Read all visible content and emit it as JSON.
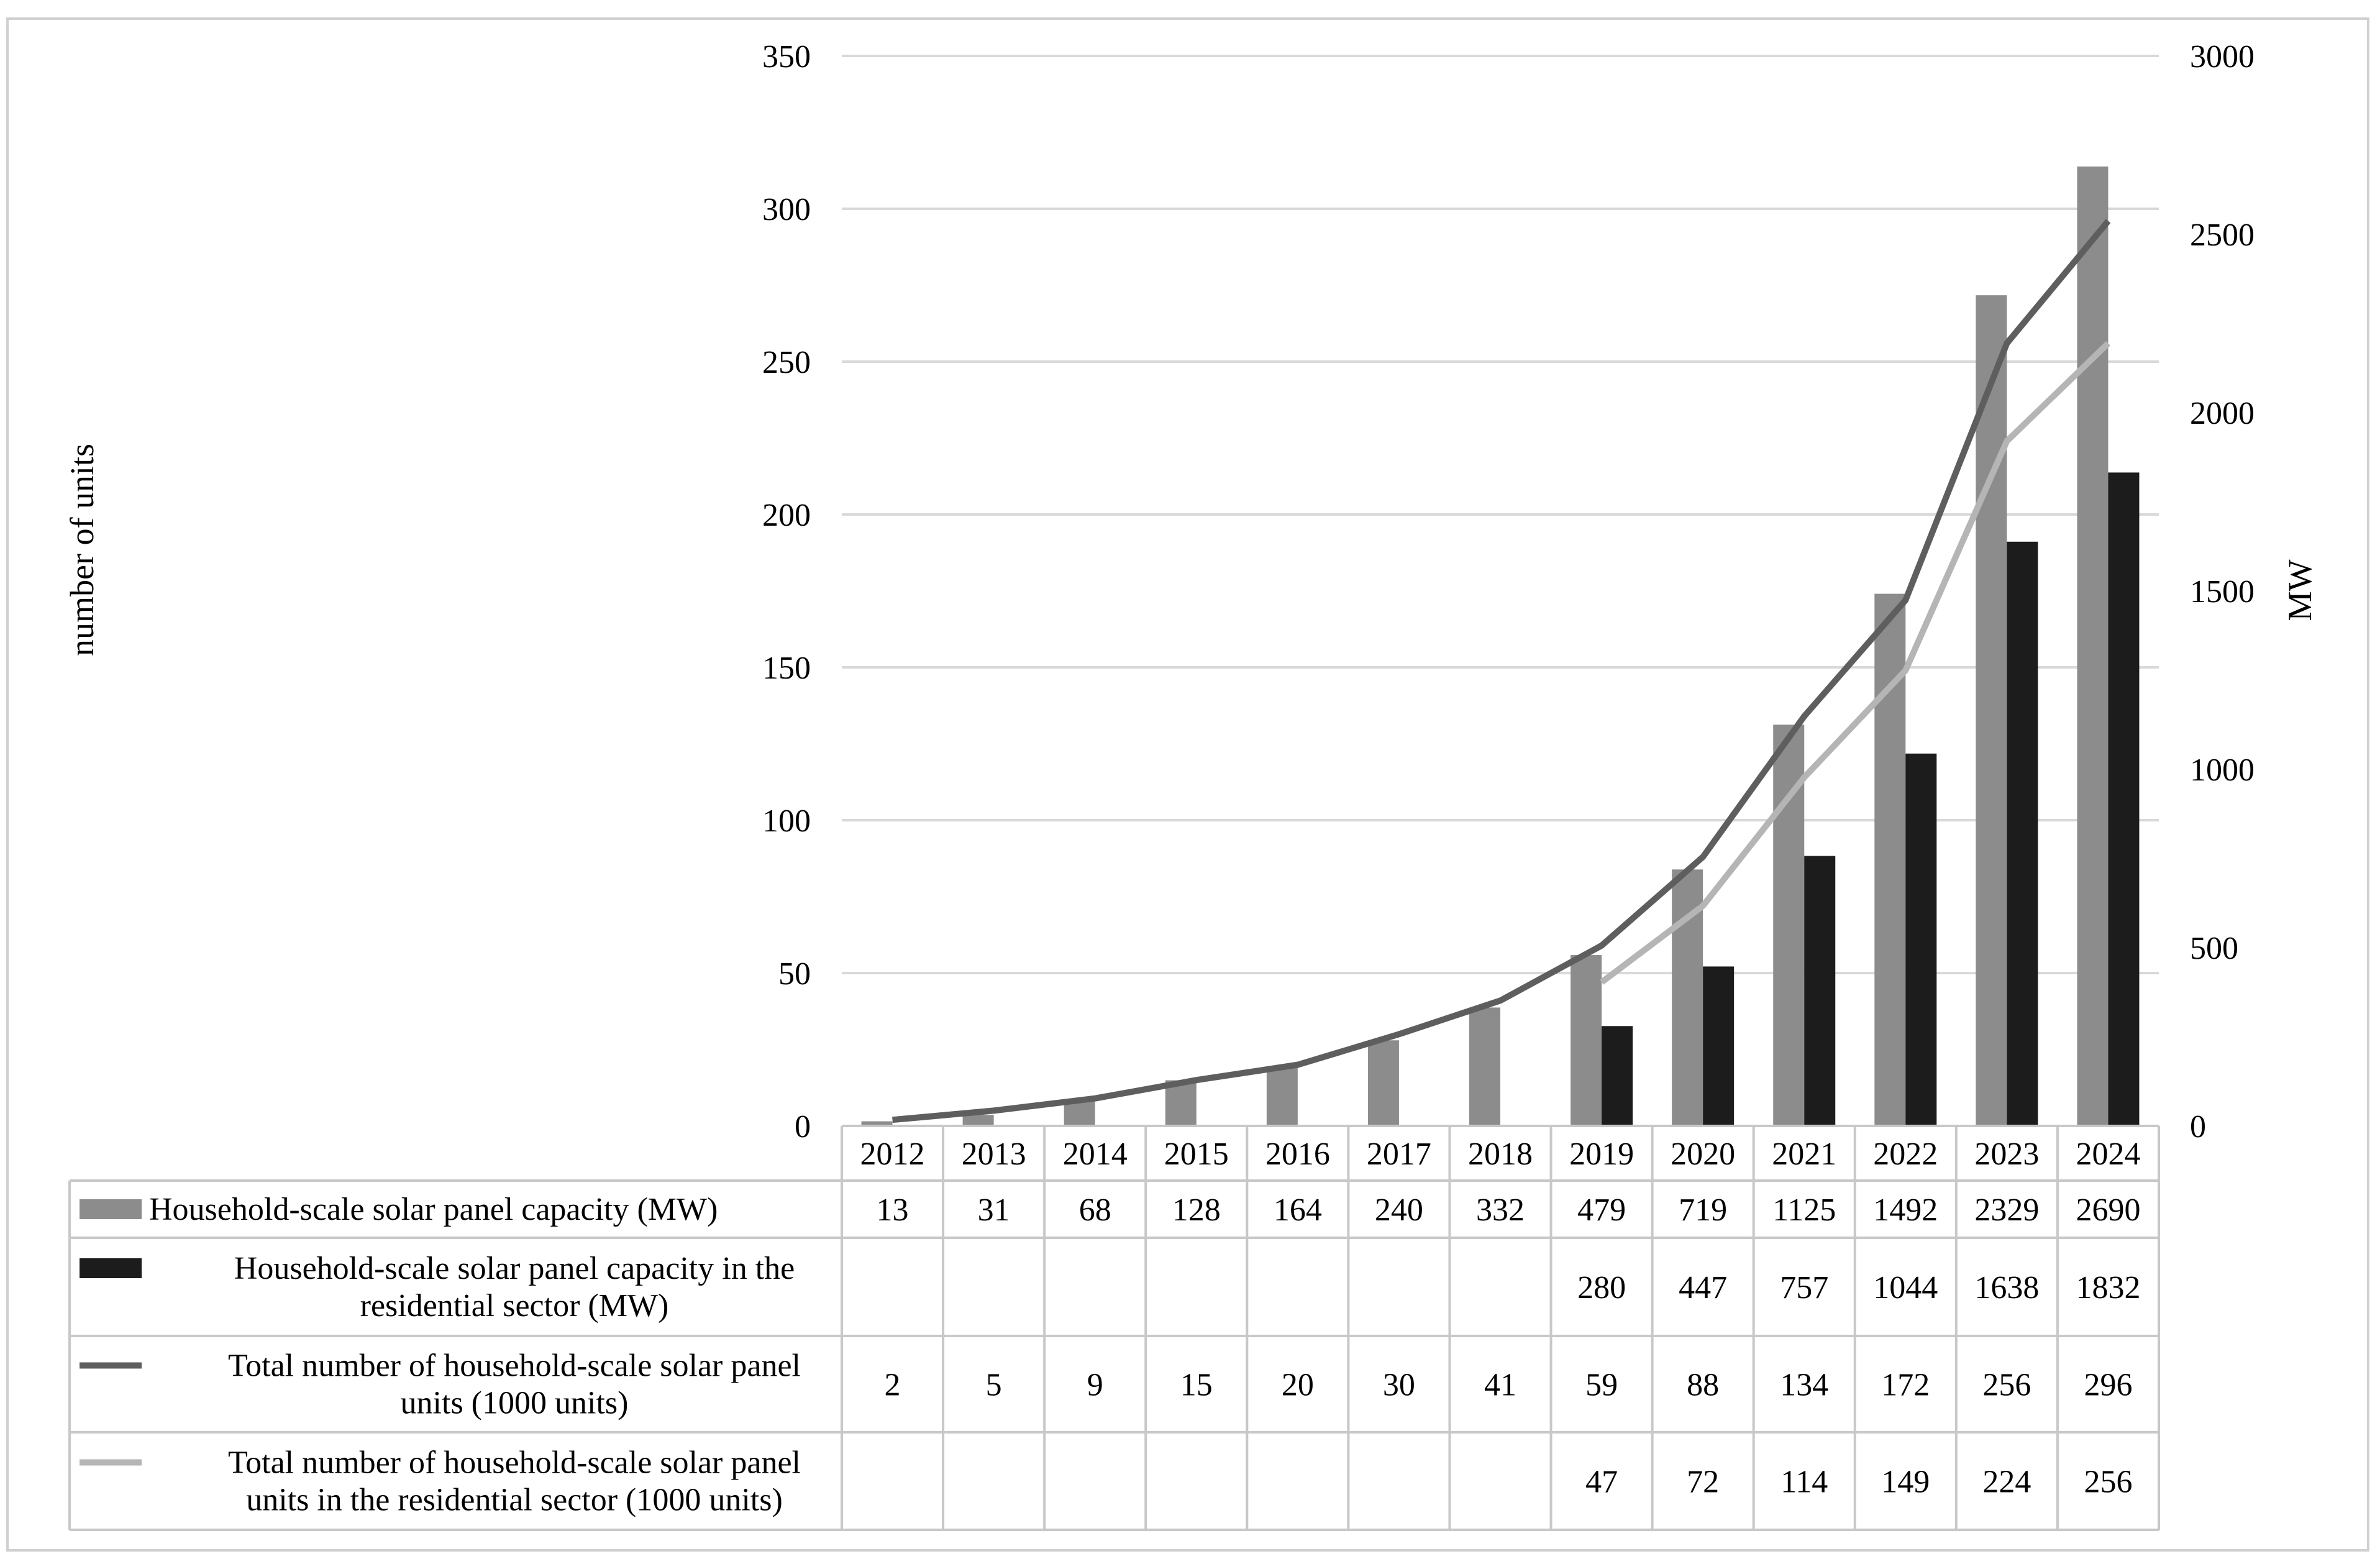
{
  "chart_data": {
    "type": "bar",
    "categories": [
      "2012",
      "2013",
      "2014",
      "2015",
      "2016",
      "2017",
      "2018",
      "2019",
      "2020",
      "2021",
      "2022",
      "2023",
      "2024"
    ],
    "y_left": {
      "label": "number of units",
      "ylim": [
        0,
        350
      ],
      "ticks": [
        "0",
        "50",
        "100",
        "150",
        "200",
        "250",
        "300",
        "350"
      ]
    },
    "y_right": {
      "label": "MW",
      "ylim": [
        0,
        3000
      ],
      "ticks": [
        "0",
        "500",
        "1000",
        "1500",
        "2000",
        "2500",
        "3000"
      ]
    },
    "grid": true,
    "legend": "data-table-below",
    "series": [
      {
        "name": "Household-scale solar panel capacity (MW)",
        "type": "bar",
        "axis": "right",
        "color": "#8c8c8c",
        "values": [
          13,
          31,
          68,
          128,
          164,
          240,
          332,
          479,
          719,
          1125,
          1492,
          2329,
          2690
        ],
        "labels": [
          "13",
          "31",
          "68",
          "128",
          "164",
          "240",
          "332",
          "479",
          "719",
          "1125",
          "1492",
          "2329",
          "2690"
        ]
      },
      {
        "name": "Household-scale solar panel capacity in the residential sector (MW)",
        "type": "bar",
        "axis": "right",
        "color": "#1c1c1c",
        "values": [
          null,
          null,
          null,
          null,
          null,
          null,
          null,
          280,
          447,
          757,
          1044,
          1638,
          1832
        ],
        "labels": [
          "",
          "",
          "",
          "",
          "",
          "",
          "",
          "280",
          "447",
          "757",
          "1044",
          "1638",
          "1832"
        ]
      },
      {
        "name": "Total number of household-scale solar panel units (1000 units)",
        "type": "line",
        "axis": "left",
        "color": "#5e5e5e",
        "values": [
          2,
          5,
          9,
          15,
          20,
          30,
          41,
          59,
          88,
          134,
          172,
          256,
          296
        ],
        "labels": [
          "2",
          "5",
          "9",
          "15",
          "20",
          "30",
          "41",
          "59",
          "88",
          "134",
          "172",
          "256",
          "296"
        ]
      },
      {
        "name": "Total number of household-scale solar panel units in the residential sector (1000 units)",
        "type": "line",
        "axis": "left",
        "color": "#b5b5b5",
        "values": [
          null,
          null,
          null,
          null,
          null,
          null,
          null,
          47,
          72,
          114,
          149,
          224,
          256
        ],
        "labels": [
          "",
          "",
          "",
          "",
          "",
          "",
          "",
          "47",
          "72",
          "114",
          "149",
          "224",
          "256"
        ]
      }
    ]
  }
}
